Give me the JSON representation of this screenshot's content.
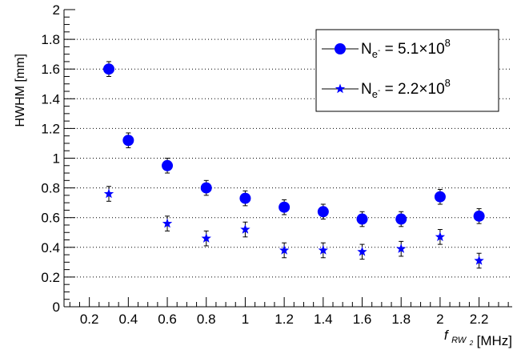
{
  "chart_data": {
    "type": "scatter",
    "ylabel": "HWHM [mm]",
    "xlabel": {
      "symbol": "f",
      "subscript": "RW",
      "subsubscript": "2",
      "unit": "[MHz]"
    },
    "xlim": [
      0.07,
      2.37
    ],
    "ylim": [
      0,
      2
    ],
    "x_ticks": [
      "0.2",
      "0.4",
      "0.6",
      "0.8",
      "1",
      "1.2",
      "1.4",
      "1.6",
      "1.8",
      "2",
      "2.2"
    ],
    "x_tick_values": [
      0.2,
      0.4,
      0.6,
      0.8,
      1.0,
      1.2,
      1.4,
      1.6,
      1.8,
      2.0,
      2.2
    ],
    "y_ticks": [
      "0",
      "0.2",
      "0.4",
      "0.6",
      "0.8",
      "1",
      "1.2",
      "1.4",
      "1.6",
      "1.8",
      "2"
    ],
    "y_tick_values": [
      0,
      0.2,
      0.4,
      0.6,
      0.8,
      1.0,
      1.2,
      1.4,
      1.6,
      1.8,
      2.0
    ],
    "grid": "horizontal dotted",
    "legend_position": "top-right",
    "series": [
      {
        "label_main": "N",
        "label_sub": "e",
        "label_subsup": "-",
        "label_value": " = 5.1",
        "label_times": "×",
        "label_base": "10",
        "label_exp": "8",
        "marker": "circle",
        "color": "#0000ff",
        "x": [
          0.3,
          0.4,
          0.6,
          0.8,
          1.0,
          1.2,
          1.4,
          1.6,
          1.8,
          2.0,
          2.2
        ],
        "y": [
          1.6,
          1.12,
          0.95,
          0.8,
          0.73,
          0.67,
          0.64,
          0.59,
          0.59,
          0.74,
          0.61
        ],
        "err": [
          0.05,
          0.05,
          0.05,
          0.05,
          0.05,
          0.05,
          0.05,
          0.05,
          0.05,
          0.05,
          0.05
        ]
      },
      {
        "label_main": "N",
        "label_sub": "e",
        "label_subsup": "-",
        "label_value": " = 2.2",
        "label_times": "×",
        "label_base": "10",
        "label_exp": "8",
        "marker": "star",
        "color": "#0000ff",
        "x": [
          0.3,
          0.6,
          0.8,
          1.0,
          1.2,
          1.4,
          1.6,
          1.8,
          2.0,
          2.2
        ],
        "y": [
          0.76,
          0.56,
          0.46,
          0.52,
          0.38,
          0.38,
          0.37,
          0.39,
          0.47,
          0.31
        ],
        "err": [
          0.05,
          0.05,
          0.05,
          0.05,
          0.05,
          0.05,
          0.05,
          0.05,
          0.05,
          0.05
        ]
      }
    ]
  }
}
